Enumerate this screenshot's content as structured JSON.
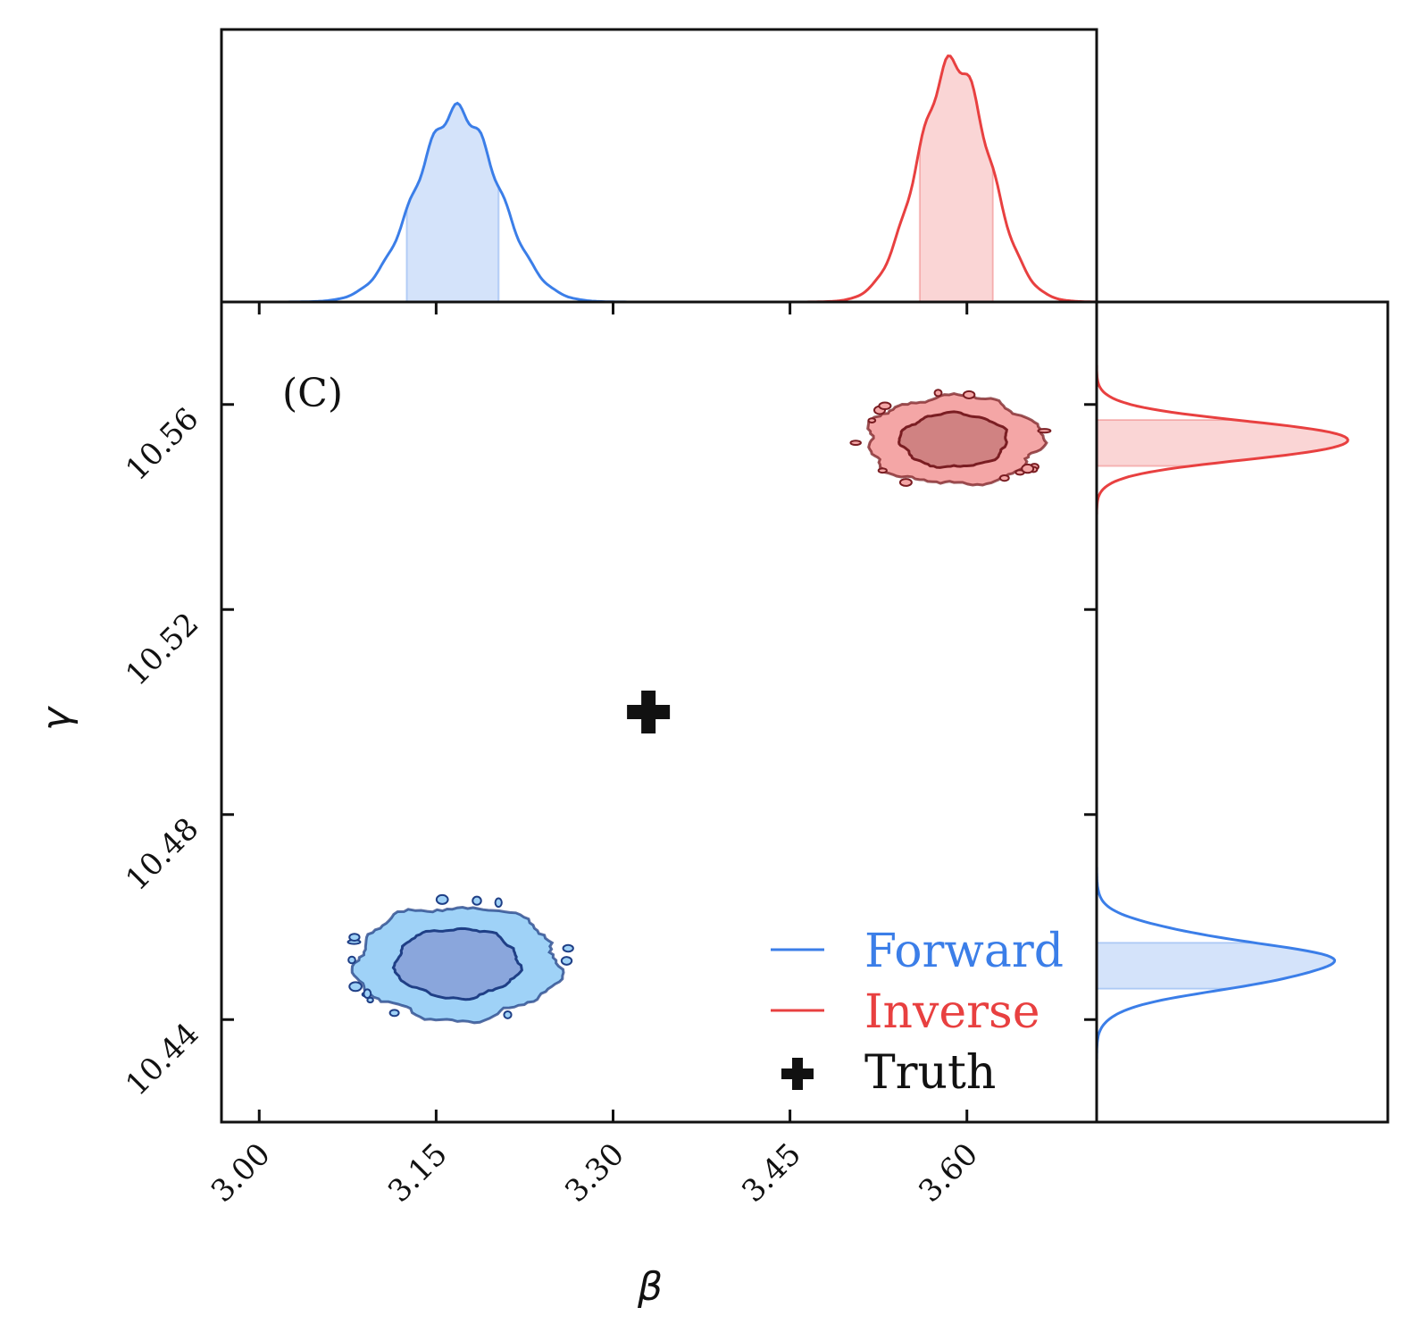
{
  "chart_data": {
    "type": "scatter",
    "title": "",
    "panel_label": "(C)",
    "xlabel": "β",
    "ylabel": "γ",
    "xlim": [
      2.968,
      3.71
    ],
    "ylim": [
      10.42,
      10.58
    ],
    "x_ticks": [
      3.0,
      3.15,
      3.3,
      3.45,
      3.6
    ],
    "x_tick_labels": [
      "3.00",
      "3.15",
      "3.30",
      "3.45",
      "3.60"
    ],
    "y_ticks": [
      10.44,
      10.48,
      10.52,
      10.56
    ],
    "y_tick_labels": [
      "10.44",
      "10.48",
      "10.52",
      "10.56"
    ],
    "grid": false,
    "legend_position": "bottom-right",
    "series": [
      {
        "name": "Forward",
        "color": "#3b7ee8",
        "contour_outer_color": "#9fd2f7",
        "contour_inner_color": "#8aa6dc",
        "contour_edge_color": "#1f3f86",
        "beta_mean": 3.168,
        "beta_sd": 0.035,
        "gamma_mean": 10.451,
        "gamma_sd": 0.0045,
        "beta_interval": [
          3.125,
          3.203
        ],
        "gamma_interval": [
          10.446,
          10.455
        ]
      },
      {
        "name": "Inverse",
        "color": "#e84040",
        "contour_outer_color": "#f4a6a6",
        "contour_inner_color": "#d08282",
        "contour_edge_color": "#7a1d22",
        "beta_mean": 3.589,
        "beta_sd": 0.03,
        "gamma_mean": 10.553,
        "gamma_sd": 0.0035,
        "beta_interval": [
          3.56,
          3.622
        ],
        "gamma_interval": [
          10.548,
          10.557
        ]
      }
    ],
    "truth": {
      "name": "Truth",
      "beta": 3.33,
      "gamma": 10.5,
      "color": "#111111"
    }
  }
}
